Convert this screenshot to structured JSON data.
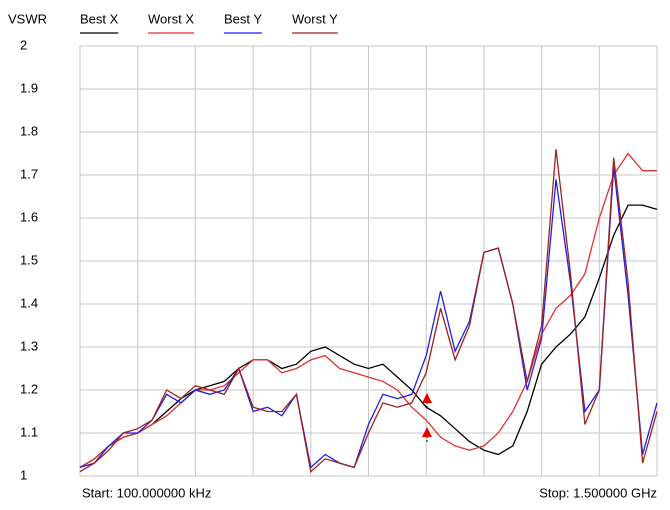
{
  "chart_data": {
    "type": "line",
    "y_axis_label": "VSWR",
    "start_label": "Start: 100.000000 kHz",
    "stop_label": "Stop: 1.500000 GHz",
    "ylim": [
      1,
      2
    ],
    "yticks": [
      1,
      1.1,
      1.2,
      1.3,
      1.4,
      1.5,
      1.6,
      1.7,
      1.8,
      1.9,
      2
    ],
    "grid": true,
    "series": [
      {
        "name": "Best X",
        "color": "#000000",
        "values": [
          1.02,
          1.04,
          1.07,
          1.09,
          1.1,
          1.12,
          1.15,
          1.18,
          1.2,
          1.21,
          1.22,
          1.25,
          1.27,
          1.27,
          1.25,
          1.26,
          1.29,
          1.3,
          1.28,
          1.26,
          1.25,
          1.26,
          1.23,
          1.2,
          1.16,
          1.14,
          1.11,
          1.08,
          1.06,
          1.05,
          1.07,
          1.15,
          1.26,
          1.3,
          1.33,
          1.37,
          1.46,
          1.56,
          1.63,
          1.63,
          1.62
        ]
      },
      {
        "name": "Worst X",
        "color": "#e03030",
        "values": [
          1.02,
          1.04,
          1.07,
          1.09,
          1.1,
          1.12,
          1.14,
          1.17,
          1.2,
          1.2,
          1.21,
          1.24,
          1.27,
          1.27,
          1.24,
          1.25,
          1.27,
          1.28,
          1.25,
          1.24,
          1.23,
          1.22,
          1.2,
          1.16,
          1.13,
          1.09,
          1.07,
          1.06,
          1.07,
          1.1,
          1.15,
          1.22,
          1.33,
          1.39,
          1.42,
          1.47,
          1.6,
          1.7,
          1.75,
          1.71,
          1.71
        ]
      },
      {
        "name": "Best Y",
        "color": "#2020e0",
        "values": [
          1.02,
          1.03,
          1.07,
          1.1,
          1.1,
          1.13,
          1.19,
          1.17,
          1.2,
          1.19,
          1.2,
          1.25,
          1.15,
          1.16,
          1.14,
          1.19,
          1.02,
          1.05,
          1.03,
          1.02,
          1.12,
          1.19,
          1.18,
          1.19,
          1.28,
          1.43,
          1.29,
          1.36,
          1.52,
          1.53,
          1.4,
          1.2,
          1.32,
          1.69,
          1.45,
          1.15,
          1.2,
          1.72,
          1.42,
          1.05,
          1.17
        ]
      },
      {
        "name": "Worst Y",
        "color": "#a02020",
        "values": [
          1.01,
          1.03,
          1.06,
          1.1,
          1.11,
          1.13,
          1.2,
          1.18,
          1.21,
          1.2,
          1.19,
          1.25,
          1.16,
          1.15,
          1.15,
          1.19,
          1.01,
          1.04,
          1.03,
          1.02,
          1.1,
          1.17,
          1.16,
          1.17,
          1.24,
          1.39,
          1.27,
          1.35,
          1.52,
          1.53,
          1.4,
          1.22,
          1.35,
          1.76,
          1.47,
          1.12,
          1.2,
          1.74,
          1.45,
          1.03,
          1.15
        ]
      }
    ]
  }
}
